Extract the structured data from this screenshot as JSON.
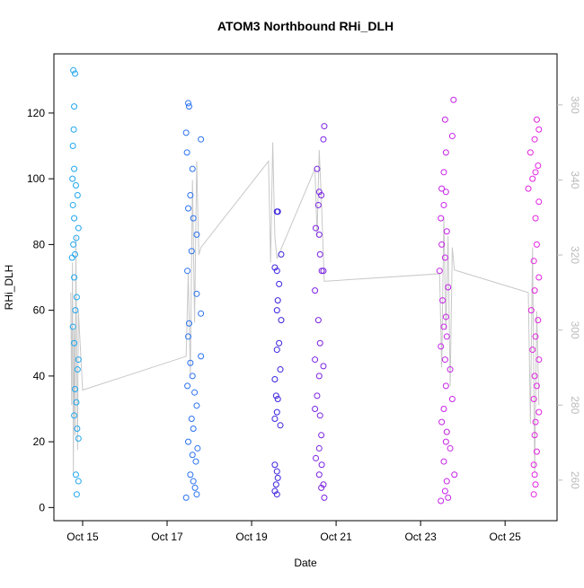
{
  "chart_data": {
    "type": "scatter",
    "title": "ATOM3 Northbound RHi_DLH",
    "x_label": "Date",
    "y_label": "RHi_DLH",
    "xlim": [
      14.32,
      26.23
    ],
    "ylim": [
      -4,
      138
    ],
    "y2lim": [
      249.2,
      373.6
    ],
    "xticks": [
      {
        "value": 15,
        "label": "Oct 15"
      },
      {
        "value": 17,
        "label": "Oct 17"
      },
      {
        "value": 19,
        "label": "Oct 19"
      },
      {
        "value": 21,
        "label": "Oct 21"
      },
      {
        "value": 23,
        "label": "Oct 23"
      },
      {
        "value": 25,
        "label": "Oct 25"
      }
    ],
    "yticks": [
      0,
      20,
      40,
      60,
      80,
      100,
      120
    ],
    "y2ticks": [
      260,
      280,
      300,
      320,
      340,
      360
    ],
    "series": [
      {
        "type": "scatter",
        "color": "#1fa6ee",
        "x": [
          14.78,
          14.82,
          14.8,
          14.79,
          14.77,
          14.8,
          14.76,
          14.84,
          14.88,
          14.77,
          14.8,
          14.9,
          14.85,
          14.78,
          14.82,
          14.75,
          14.8,
          14.86,
          14.83,
          14.77,
          14.8,
          14.9,
          14.88,
          14.82,
          14.85,
          14.8,
          14.87,
          14.9,
          14.84,
          14.9,
          14.86
        ],
        "values": [
          133,
          132,
          122,
          115,
          110,
          103,
          100,
          98,
          95,
          92,
          88,
          85,
          82,
          80,
          77,
          76,
          70,
          64,
          60,
          55,
          50,
          45,
          42,
          36,
          32,
          28,
          24,
          21,
          10,
          8,
          4
        ]
      },
      {
        "type": "scatter",
        "color": "#2a72f0",
        "x": [
          17.5,
          17.52,
          17.45,
          17.8,
          17.47,
          17.6,
          17.55,
          17.5,
          17.62,
          17.7,
          17.58,
          17.48,
          17.7,
          17.8,
          17.52,
          17.5,
          17.8,
          17.55,
          17.6,
          17.48,
          17.65,
          17.7,
          17.58,
          17.62,
          17.5,
          17.72,
          17.6,
          17.68,
          17.55,
          17.62,
          17.66,
          17.7,
          17.45
        ],
        "values": [
          123,
          122,
          114,
          112,
          108,
          103,
          95,
          91,
          88,
          83,
          78,
          72,
          65,
          59,
          56,
          52,
          46,
          44,
          40,
          37,
          35,
          31,
          27,
          24,
          20,
          18,
          16,
          14,
          10,
          8,
          6,
          4,
          3
        ]
      },
      {
        "type": "scatter",
        "color": "#3a24de",
        "x": [
          19.6,
          19.62,
          19.7,
          19.55,
          19.6,
          19.65,
          19.62,
          19.6,
          19.7,
          19.65,
          19.6,
          19.68,
          19.55,
          19.58,
          19.62,
          19.6,
          19.55,
          19.68,
          19.55,
          19.6,
          19.62,
          19.58,
          19.55,
          19.6
        ],
        "values": [
          90,
          90,
          77,
          73,
          72,
          68,
          63,
          60,
          57,
          50,
          48,
          42,
          39,
          34,
          33,
          29,
          27,
          25,
          13,
          11,
          9,
          7,
          5,
          4
        ]
      },
      {
        "type": "scatter",
        "color": "#7a22e2",
        "x": [
          20.72,
          20.7,
          20.55,
          20.6,
          20.65,
          20.58,
          20.52,
          20.6,
          20.62,
          20.66,
          20.7,
          20.5,
          20.58,
          20.62,
          20.5,
          20.7,
          20.6,
          20.55,
          20.5,
          20.62,
          20.65,
          20.6,
          20.52,
          20.66,
          20.6,
          20.7,
          20.65,
          20.72
        ],
        "values": [
          116,
          112,
          103,
          96,
          95,
          92,
          85,
          83,
          77,
          72,
          72,
          66,
          57,
          50,
          45,
          43,
          40,
          34,
          30,
          28,
          22,
          18,
          15,
          13,
          10,
          7,
          6,
          3
        ]
      },
      {
        "type": "scatter",
        "color": "#c622e6",
        "x": [
          23.78,
          23.58,
          23.75,
          23.6,
          23.55,
          23.5,
          23.6,
          23.55,
          23.48,
          23.62,
          23.5,
          23.58,
          23.45,
          23.65,
          23.52,
          23.6,
          23.55,
          23.62,
          23.48,
          23.58,
          23.7,
          23.6,
          23.75,
          23.55,
          23.5,
          23.62,
          23.6,
          23.7,
          23.55,
          23.8,
          23.62,
          23.58,
          23.65,
          23.48
        ],
        "values": [
          124,
          118,
          113,
          108,
          102,
          97,
          96,
          92,
          88,
          84,
          80,
          76,
          72,
          67,
          63,
          58,
          55,
          52,
          49,
          45,
          42,
          37,
          33,
          30,
          26,
          23,
          20,
          18,
          14,
          10,
          8,
          5,
          3,
          2
        ]
      },
      {
        "type": "scatter",
        "color": "#e224e0",
        "x": [
          25.75,
          25.8,
          25.7,
          25.6,
          25.78,
          25.72,
          25.65,
          25.55,
          25.8,
          25.72,
          25.75,
          25.68,
          25.8,
          25.7,
          25.62,
          25.78,
          25.72,
          25.65,
          25.8,
          25.7,
          25.75,
          25.68,
          25.8,
          25.72,
          25.7,
          25.75,
          25.68,
          25.7,
          25.72,
          25.68
        ],
        "values": [
          118,
          115,
          112,
          108,
          104,
          102,
          100,
          97,
          93,
          88,
          80,
          75,
          70,
          66,
          60,
          57,
          52,
          48,
          45,
          40,
          37,
          33,
          29,
          26,
          22,
          17,
          13,
          10,
          7,
          4
        ]
      },
      {
        "type": "line",
        "axis": "y2",
        "color": "#c8c8c8",
        "x": [
          14.72,
          14.74,
          14.76,
          14.78,
          14.8,
          14.82,
          14.84,
          14.86,
          14.88,
          14.9,
          15.0,
          17.45,
          17.5,
          17.55,
          17.6,
          17.65,
          17.7,
          17.75,
          17.8,
          19.4,
          19.45,
          19.5,
          19.55,
          19.6,
          20.5,
          20.55,
          20.6,
          20.65,
          20.72,
          23.45,
          23.5,
          23.55,
          23.6,
          23.65,
          23.7,
          23.75,
          23.8,
          25.55,
          25.6,
          25.65,
          25.7,
          25.75,
          25.8
        ],
        "values": [
          310,
          280,
          318,
          262,
          300,
          272,
          325,
          290,
          268,
          305,
          284,
          293,
          315,
          288,
          340,
          302,
          345,
          320,
          322,
          345,
          318,
          350,
          325,
          319,
          343,
          325,
          348,
          335,
          313,
          315,
          290,
          330,
          300,
          325,
          285,
          322,
          316,
          310,
          275,
          322,
          262,
          305,
          280
        ]
      }
    ]
  }
}
